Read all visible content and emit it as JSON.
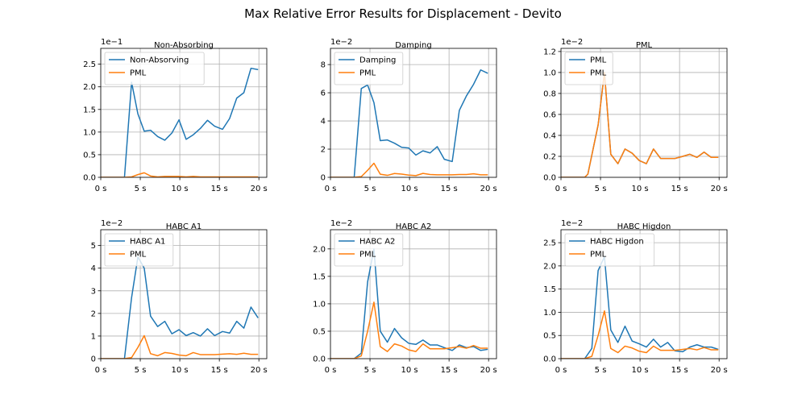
{
  "figure": {
    "title": "Max Relative Error Results for Displacement - Devito",
    "colors": {
      "primary": "#1f77b4",
      "pml": "#ff7f0e",
      "grid": "#b0b0b0"
    }
  },
  "chart_data": [
    {
      "type": "line",
      "title": "Non-Absorbing",
      "multiplier": "1e−1",
      "xlim": [
        0,
        21
      ],
      "ylim": [
        0,
        2.85
      ],
      "xticks": [
        0,
        5,
        10,
        15,
        20
      ],
      "xtick_labels": [
        "0 s",
        "5 s",
        "10 s",
        "15 s",
        "20 s"
      ],
      "yticks": [
        0,
        0.5,
        1.0,
        1.5,
        2.0,
        2.5
      ],
      "ytick_labels": [
        "0.0",
        "0.5",
        "1.0",
        "1.5",
        "2.0",
        "2.5"
      ],
      "grid": true,
      "legend": "top-left",
      "series": [
        {
          "name": "Non-Absorving",
          "color": "#1f77b4",
          "x": [
            0,
            1,
            2,
            3,
            3.9,
            4.7,
            5.5,
            6.3,
            7.2,
            8.1,
            9.0,
            9.9,
            10.8,
            11.7,
            12.6,
            13.5,
            14.4,
            15.4,
            16.3,
            17.2,
            18.1,
            19.0,
            19.9
          ],
          "y": [
            0,
            0,
            0,
            0,
            2.1,
            1.4,
            1.02,
            1.04,
            0.9,
            0.82,
            0.98,
            1.27,
            0.84,
            0.94,
            1.08,
            1.26,
            1.13,
            1.06,
            1.3,
            1.75,
            1.87,
            2.41,
            2.38
          ]
        },
        {
          "name": "PML",
          "color": "#ff7f0e",
          "x": [
            0,
            1,
            2,
            3,
            3.9,
            4.7,
            5.5,
            6.3,
            7.2,
            8.1,
            9.0,
            9.9,
            10.8,
            11.7,
            12.6,
            13.5,
            14.4,
            15.4,
            16.3,
            17.2,
            18.1,
            19.0,
            19.9
          ],
          "y": [
            0,
            0,
            0,
            0,
            0.01,
            0.06,
            0.1,
            0.03,
            0.01,
            0.02,
            0.02,
            0.02,
            0.01,
            0.02,
            0.01,
            0.01,
            0.01,
            0.01,
            0.01,
            0.01,
            0.01,
            0.01,
            0.01
          ]
        }
      ]
    },
    {
      "type": "line",
      "title": "Damping",
      "multiplier": "1e−2",
      "xlim": [
        0,
        21
      ],
      "ylim": [
        0,
        9.15
      ],
      "xticks": [
        0,
        5,
        10,
        15,
        20
      ],
      "xtick_labels": [
        "0 s",
        "5 s",
        "10 s",
        "15 s",
        "20 s"
      ],
      "yticks": [
        0,
        2,
        4,
        6,
        8
      ],
      "ytick_labels": [
        "0",
        "2",
        "4",
        "6",
        "8"
      ],
      "grid": true,
      "legend": "top-left",
      "series": [
        {
          "name": "Damping",
          "color": "#1f77b4",
          "x": [
            0,
            1,
            2,
            3,
            3.9,
            4.7,
            5.5,
            6.3,
            7.2,
            8.1,
            9.0,
            9.9,
            10.8,
            11.7,
            12.6,
            13.5,
            14.4,
            15.4,
            16.3,
            17.2,
            18.1,
            19.0,
            19.9
          ],
          "y": [
            0,
            0,
            0,
            0,
            6.3,
            6.55,
            5.3,
            2.6,
            2.65,
            2.42,
            2.13,
            2.08,
            1.58,
            1.88,
            1.73,
            2.18,
            1.28,
            1.12,
            4.75,
            5.78,
            6.6,
            7.62,
            7.38
          ]
        },
        {
          "name": "PML",
          "color": "#ff7f0e",
          "x": [
            0,
            1,
            2,
            3,
            3.9,
            4.7,
            5.5,
            6.3,
            7.2,
            8.1,
            9.0,
            9.9,
            10.8,
            11.7,
            12.6,
            13.5,
            14.4,
            15.4,
            16.3,
            17.2,
            18.1,
            19.0,
            19.9
          ],
          "y": [
            0,
            0,
            0,
            0,
            0.05,
            0.5,
            1.0,
            0.22,
            0.14,
            0.27,
            0.23,
            0.16,
            0.12,
            0.28,
            0.2,
            0.18,
            0.18,
            0.18,
            0.2,
            0.2,
            0.25,
            0.18,
            0.18
          ]
        }
      ]
    },
    {
      "type": "line",
      "title": "PML",
      "multiplier": "1e−2",
      "xlim": [
        0,
        21
      ],
      "ylim": [
        0,
        1.23
      ],
      "xticks": [
        0,
        5,
        10,
        15,
        20
      ],
      "xtick_labels": [
        "0 s",
        "5 s",
        "10 s",
        "15 s",
        "20 s"
      ],
      "yticks": [
        0,
        0.2,
        0.4,
        0.6,
        0.8,
        1.0,
        1.2
      ],
      "ytick_labels": [
        "0.0",
        "0.2",
        "0.4",
        "0.6",
        "0.8",
        "1.0",
        "1.2"
      ],
      "grid": true,
      "legend": "top-left",
      "series": [
        {
          "name": "PML",
          "color": "#1f77b4",
          "x": [
            0,
            1,
            2,
            3,
            3.4,
            4.7,
            5.5,
            6.3,
            7.2,
            8.1,
            9.0,
            9.9,
            10.8,
            11.7,
            12.6,
            13.5,
            14.4,
            15.4,
            16.3,
            17.2,
            18.1,
            19.0,
            19.9
          ],
          "y": [
            0,
            0,
            0,
            0,
            0.03,
            0.5,
            1.0,
            0.22,
            0.13,
            0.27,
            0.23,
            0.16,
            0.13,
            0.27,
            0.18,
            0.18,
            0.18,
            0.2,
            0.22,
            0.19,
            0.24,
            0.19,
            0.19
          ]
        },
        {
          "name": "PML",
          "color": "#ff7f0e",
          "x": [
            0,
            1,
            2,
            3,
            3.4,
            4.7,
            5.5,
            6.3,
            7.2,
            8.1,
            9.0,
            9.9,
            10.8,
            11.7,
            12.6,
            13.5,
            14.4,
            15.4,
            16.3,
            17.2,
            18.1,
            19.0,
            19.9
          ],
          "y": [
            0,
            0,
            0,
            0,
            0.03,
            0.5,
            1.0,
            0.22,
            0.13,
            0.27,
            0.23,
            0.16,
            0.13,
            0.27,
            0.18,
            0.18,
            0.18,
            0.2,
            0.22,
            0.19,
            0.24,
            0.19,
            0.19
          ]
        }
      ]
    },
    {
      "type": "line",
      "title": "HABC A1",
      "multiplier": "1e−2",
      "xlim": [
        0,
        21
      ],
      "ylim": [
        0,
        5.7
      ],
      "xticks": [
        0,
        5,
        10,
        15,
        20
      ],
      "xtick_labels": [
        "0 s",
        "5 s",
        "10 s",
        "15 s",
        "20 s"
      ],
      "yticks": [
        0,
        1,
        2,
        3,
        4,
        5
      ],
      "ytick_labels": [
        "0",
        "1",
        "2",
        "3",
        "4",
        "5"
      ],
      "grid": true,
      "legend": "top-left",
      "series": [
        {
          "name": "HABC A1",
          "color": "#1f77b4",
          "x": [
            0,
            1,
            2,
            3,
            3.9,
            4.7,
            5.5,
            6.3,
            7.2,
            8.1,
            9.0,
            9.9,
            10.8,
            11.7,
            12.6,
            13.5,
            14.4,
            15.4,
            16.3,
            17.2,
            18.1,
            19.0,
            19.9
          ],
          "y": [
            0,
            0,
            0,
            0,
            2.7,
            4.5,
            4.0,
            1.88,
            1.42,
            1.65,
            1.1,
            1.28,
            1.02,
            1.15,
            1.0,
            1.32,
            1.02,
            1.2,
            1.13,
            1.65,
            1.35,
            2.28,
            1.8
          ]
        },
        {
          "name": "PML",
          "color": "#ff7f0e",
          "x": [
            0,
            1,
            2,
            3,
            3.9,
            4.7,
            5.5,
            6.3,
            7.2,
            8.1,
            9.0,
            9.9,
            10.8,
            11.7,
            12.6,
            13.5,
            14.4,
            15.4,
            16.3,
            17.2,
            18.1,
            19.0,
            19.9
          ],
          "y": [
            0,
            0,
            0,
            0,
            0.05,
            0.5,
            1.02,
            0.22,
            0.13,
            0.27,
            0.23,
            0.16,
            0.13,
            0.27,
            0.18,
            0.18,
            0.18,
            0.2,
            0.22,
            0.19,
            0.24,
            0.19,
            0.19
          ]
        }
      ]
    },
    {
      "type": "line",
      "title": "HABC A2",
      "multiplier": "1e−2",
      "xlim": [
        0,
        21
      ],
      "ylim": [
        0,
        2.35
      ],
      "xticks": [
        0,
        5,
        10,
        15,
        20
      ],
      "xtick_labels": [
        "0 s",
        "5 s",
        "10 s",
        "15 s",
        "20 s"
      ],
      "yticks": [
        0,
        0.5,
        1.0,
        1.5,
        2.0
      ],
      "ytick_labels": [
        "0.0",
        "0.5",
        "1.0",
        "1.5",
        "2.0"
      ],
      "grid": true,
      "legend": "top-left",
      "series": [
        {
          "name": "HABC A2",
          "color": "#1f77b4",
          "x": [
            0,
            1,
            2,
            3,
            3.9,
            4.7,
            5.5,
            6.3,
            7.2,
            8.1,
            9.0,
            9.9,
            10.8,
            11.7,
            12.6,
            13.5,
            14.4,
            15.4,
            16.3,
            17.2,
            18.1,
            19.0,
            19.9
          ],
          "y": [
            0,
            0,
            0,
            0,
            0.1,
            1.4,
            2.0,
            0.5,
            0.3,
            0.55,
            0.38,
            0.28,
            0.26,
            0.34,
            0.25,
            0.25,
            0.2,
            0.15,
            0.25,
            0.2,
            0.22,
            0.15,
            0.17
          ]
        },
        {
          "name": "PML",
          "color": "#ff7f0e",
          "x": [
            0,
            1,
            2,
            3,
            3.9,
            4.7,
            5.5,
            6.3,
            7.2,
            8.1,
            9.0,
            9.9,
            10.8,
            11.7,
            12.6,
            13.5,
            14.4,
            15.4,
            16.3,
            17.2,
            18.1,
            19.0,
            19.9
          ],
          "y": [
            0,
            0,
            0,
            0,
            0.05,
            0.5,
            1.03,
            0.22,
            0.13,
            0.27,
            0.23,
            0.16,
            0.13,
            0.27,
            0.18,
            0.18,
            0.18,
            0.2,
            0.22,
            0.19,
            0.24,
            0.19,
            0.19
          ]
        }
      ]
    },
    {
      "type": "line",
      "title": "HABC Higdon",
      "multiplier": "1e−2",
      "xlim": [
        0,
        21
      ],
      "ylim": [
        0,
        2.78
      ],
      "xticks": [
        0,
        5,
        10,
        15,
        20
      ],
      "xtick_labels": [
        "0 s",
        "5 s",
        "10 s",
        "15 s",
        "20 s"
      ],
      "yticks": [
        0,
        0.5,
        1.0,
        1.5,
        2.0,
        2.5
      ],
      "ytick_labels": [
        "0.0",
        "0.5",
        "1.0",
        "1.5",
        "2.0",
        "2.5"
      ],
      "grid": true,
      "legend": "top-left",
      "series": [
        {
          "name": "HABC Higdon",
          "color": "#1f77b4",
          "x": [
            0,
            1,
            2,
            3,
            3.9,
            4.7,
            5.5,
            6.3,
            7.2,
            8.1,
            9.0,
            9.9,
            10.8,
            11.7,
            12.6,
            13.5,
            14.4,
            15.4,
            16.3,
            17.2,
            18.1,
            19.0,
            19.9
          ],
          "y": [
            0,
            0,
            0,
            0,
            0.22,
            1.9,
            2.2,
            0.62,
            0.35,
            0.7,
            0.38,
            0.32,
            0.25,
            0.42,
            0.25,
            0.35,
            0.17,
            0.15,
            0.25,
            0.3,
            0.25,
            0.25,
            0.2
          ]
        },
        {
          "name": "PML",
          "color": "#ff7f0e",
          "x": [
            0,
            1,
            2,
            3,
            3.9,
            4.7,
            5.5,
            6.3,
            7.2,
            8.1,
            9.0,
            9.9,
            10.8,
            11.7,
            12.6,
            13.5,
            14.4,
            15.4,
            16.3,
            17.2,
            18.1,
            19.0,
            19.9
          ],
          "y": [
            0,
            0,
            0,
            0,
            0.05,
            0.5,
            1.03,
            0.22,
            0.13,
            0.27,
            0.23,
            0.16,
            0.13,
            0.27,
            0.18,
            0.18,
            0.18,
            0.2,
            0.22,
            0.19,
            0.24,
            0.19,
            0.19
          ]
        }
      ]
    }
  ]
}
